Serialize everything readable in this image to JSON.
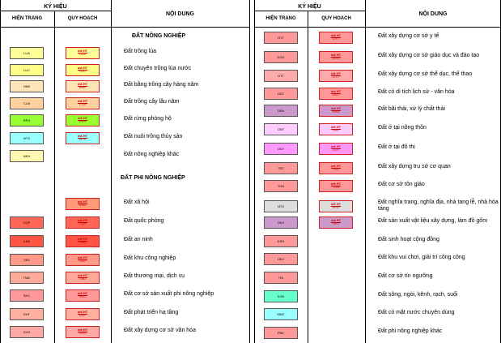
{
  "header": {
    "legend_label": "KÝ HIỆU",
    "current_label": "HIỆN TRẠNG",
    "planned_label": "QUY HOẠCH",
    "content_label": "NỘI DUNG"
  },
  "plan_marker": "mã HT",
  "sections": {
    "agri": "ĐẤT NÔNG NGHIỆP",
    "nonagri": "ĐẤT PHI NÔNG NGHIỆP"
  },
  "colors": {
    "LUA": "#ffff99",
    "LUC": "#ffff88",
    "HNK": "#ffe4b5",
    "CLN": "#ffd19e",
    "RPH": "#99ff33",
    "NTS": "#99ffff",
    "NKH": "#fff8b0",
    "DXH": "#ff9977",
    "CQP": "#ff6655",
    "CAN": "#ff5544",
    "SKK": "#ff9988",
    "TMD": "#ffaa99",
    "SKC": "#ff9999",
    "DHT": "#ffb0a0",
    "DVH": "#ffa8a8",
    "DYT": "#ff9999",
    "DGD": "#ff9999",
    "DTT": "#ffaaaa",
    "DDT": "#ff9999",
    "DRA": "#cc99cc",
    "ONT": "#ffccff",
    "ODT": "#ff99ff",
    "TSC": "#ff9999",
    "TON": "#ff9999",
    "NTD": "#dddddd",
    "SKX": "#cc99cc",
    "DSH": "#ff9999",
    "DKV": "#ff9999",
    "TIN": "#ff9999",
    "SON": "#66ffcc",
    "MNC": "#99ffff",
    "PNK": "#ff9999"
  },
  "left": [
    {
      "code": "LUA",
      "plan": "LUA",
      "desc": "Đất trồng lúa"
    },
    {
      "code": "LUC",
      "plan": "LUC",
      "desc": "Đất chuyên trồng lúa nước"
    },
    {
      "code": "HNK",
      "plan": "BHK",
      "desc": "Đất bằng trồng cây hàng năm"
    },
    {
      "code": "CLN",
      "plan": "CLN",
      "desc": "Đất trồng cây lâu năm"
    },
    {
      "code": "RPH",
      "plan": "RPH",
      "desc": "Đất rừng phòng hộ"
    },
    {
      "code": "NTS",
      "plan": "NTS",
      "desc": "Đất nuôi trồng thủy sản"
    },
    {
      "code": "NKH",
      "plan": "",
      "desc": "Đất nông nghiệp khác"
    },
    {
      "code": "",
      "plan": "DXH",
      "desc": "Đất xã hội"
    },
    {
      "code": "CQP",
      "plan": "CQP",
      "desc": "Đất quốc phòng"
    },
    {
      "code": "CAN",
      "plan": "CAN",
      "desc": "Đất an ninh"
    },
    {
      "code": "SKK",
      "plan": "SKK",
      "desc": "Đất khu công nghiệp"
    },
    {
      "code": "TMD",
      "plan": "TMD",
      "desc": "Đất thương mại, dịch vụ"
    },
    {
      "code": "SKC",
      "plan": "SKC",
      "desc": "Đất cơ sở sản xuất phi nông nghiệp"
    },
    {
      "code": "DHT",
      "plan": "DHT",
      "desc": "Đất phát triển hạ tầng"
    },
    {
      "code": "DVH",
      "plan": "DVH",
      "desc": "Đất xây dựng cơ sở văn hóa"
    }
  ],
  "right": [
    {
      "code": "DYT",
      "plan": "DYT",
      "desc": "Đất xây dựng cơ sở y tế"
    },
    {
      "code": "DGD",
      "plan": "DGD",
      "desc": "Đất xây dựng cơ sở giáo dục và đào tạo"
    },
    {
      "code": "DTT",
      "plan": "DTT",
      "desc": "Đất xây dựng cơ sở thể dục, thể thao"
    },
    {
      "code": "DDT",
      "plan": "DDT",
      "desc": "Đất có di tích lịch sử - văn hóa"
    },
    {
      "code": "DRA",
      "plan": "DRA",
      "desc": "Đất bãi thải, xử lý chất thải"
    },
    {
      "code": "ONT",
      "plan": "ONT",
      "desc": "Đất ở tại nông thôn"
    },
    {
      "code": "ODT",
      "plan": "ODT",
      "desc": "Đất ở tại đô thị"
    },
    {
      "code": "TSC",
      "plan": "TSC",
      "desc": "Đất xây dựng trụ sở cơ quan"
    },
    {
      "code": "TON",
      "plan": "TON",
      "desc": "Đất cơ sở tôn giáo"
    },
    {
      "code": "NTD",
      "plan": "NTD",
      "desc": "Đất nghĩa trang, nghĩa địa, nhà tang lễ, nhà hỏa táng"
    },
    {
      "code": "SKX",
      "plan": "SKX",
      "desc": "Đất sản xuất vật liệu xây dựng, làm đồ gốm"
    },
    {
      "code": "DSH",
      "plan": "",
      "desc": "Đất sinh hoạt cộng đồng"
    },
    {
      "code": "DKV",
      "plan": "",
      "desc": "Đất khu vui chơi, giải trí công cộng"
    },
    {
      "code": "TIN",
      "plan": "",
      "desc": "Đất cơ sở tín ngưỡng"
    },
    {
      "code": "SON",
      "plan": "",
      "desc": "Đất sông, ngòi, kênh, rạch, suối"
    },
    {
      "code": "MNC",
      "plan": "",
      "desc": "Đất có mặt nước chuyên dùng"
    },
    {
      "code": "PNK",
      "plan": "",
      "desc": "Đất phi nông nghiệp khác"
    }
  ]
}
